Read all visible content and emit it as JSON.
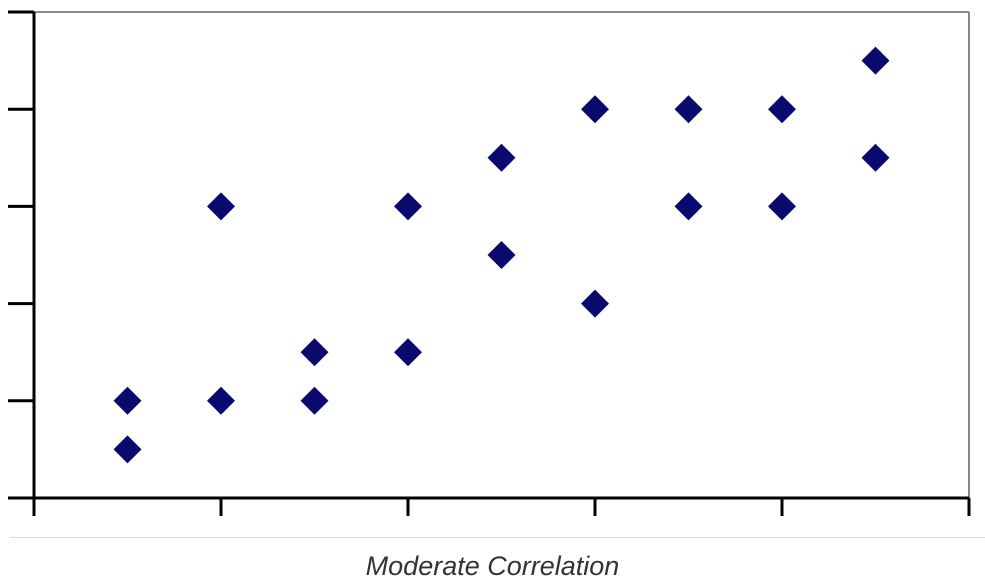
{
  "caption": "Moderate Correlation",
  "chart_data": {
    "type": "scatter",
    "title": "",
    "xlabel": "",
    "ylabel": "",
    "xlim": [
      0,
      10
    ],
    "ylim": [
      0,
      5
    ],
    "x_ticks": [
      0,
      2,
      4,
      6,
      8,
      10
    ],
    "y_ticks": [
      0,
      1,
      2,
      3,
      4,
      5
    ],
    "grid": false,
    "legend": "none",
    "marker": "diamond",
    "marker_color": "#0a0a6e",
    "axis_color": "#000000",
    "frame_color": "#888888",
    "points": [
      {
        "x": 1,
        "y": 0.5
      },
      {
        "x": 1,
        "y": 1
      },
      {
        "x": 2,
        "y": 1
      },
      {
        "x": 2,
        "y": 3
      },
      {
        "x": 3,
        "y": 1
      },
      {
        "x": 3,
        "y": 1.5
      },
      {
        "x": 4,
        "y": 1.5
      },
      {
        "x": 4,
        "y": 3
      },
      {
        "x": 5,
        "y": 2.5
      },
      {
        "x": 5,
        "y": 3.5
      },
      {
        "x": 6,
        "y": 2
      },
      {
        "x": 6,
        "y": 4
      },
      {
        "x": 7,
        "y": 3
      },
      {
        "x": 7,
        "y": 4
      },
      {
        "x": 8,
        "y": 3
      },
      {
        "x": 8,
        "y": 4
      },
      {
        "x": 9,
        "y": 3.5
      },
      {
        "x": 9,
        "y": 4.5
      }
    ]
  }
}
